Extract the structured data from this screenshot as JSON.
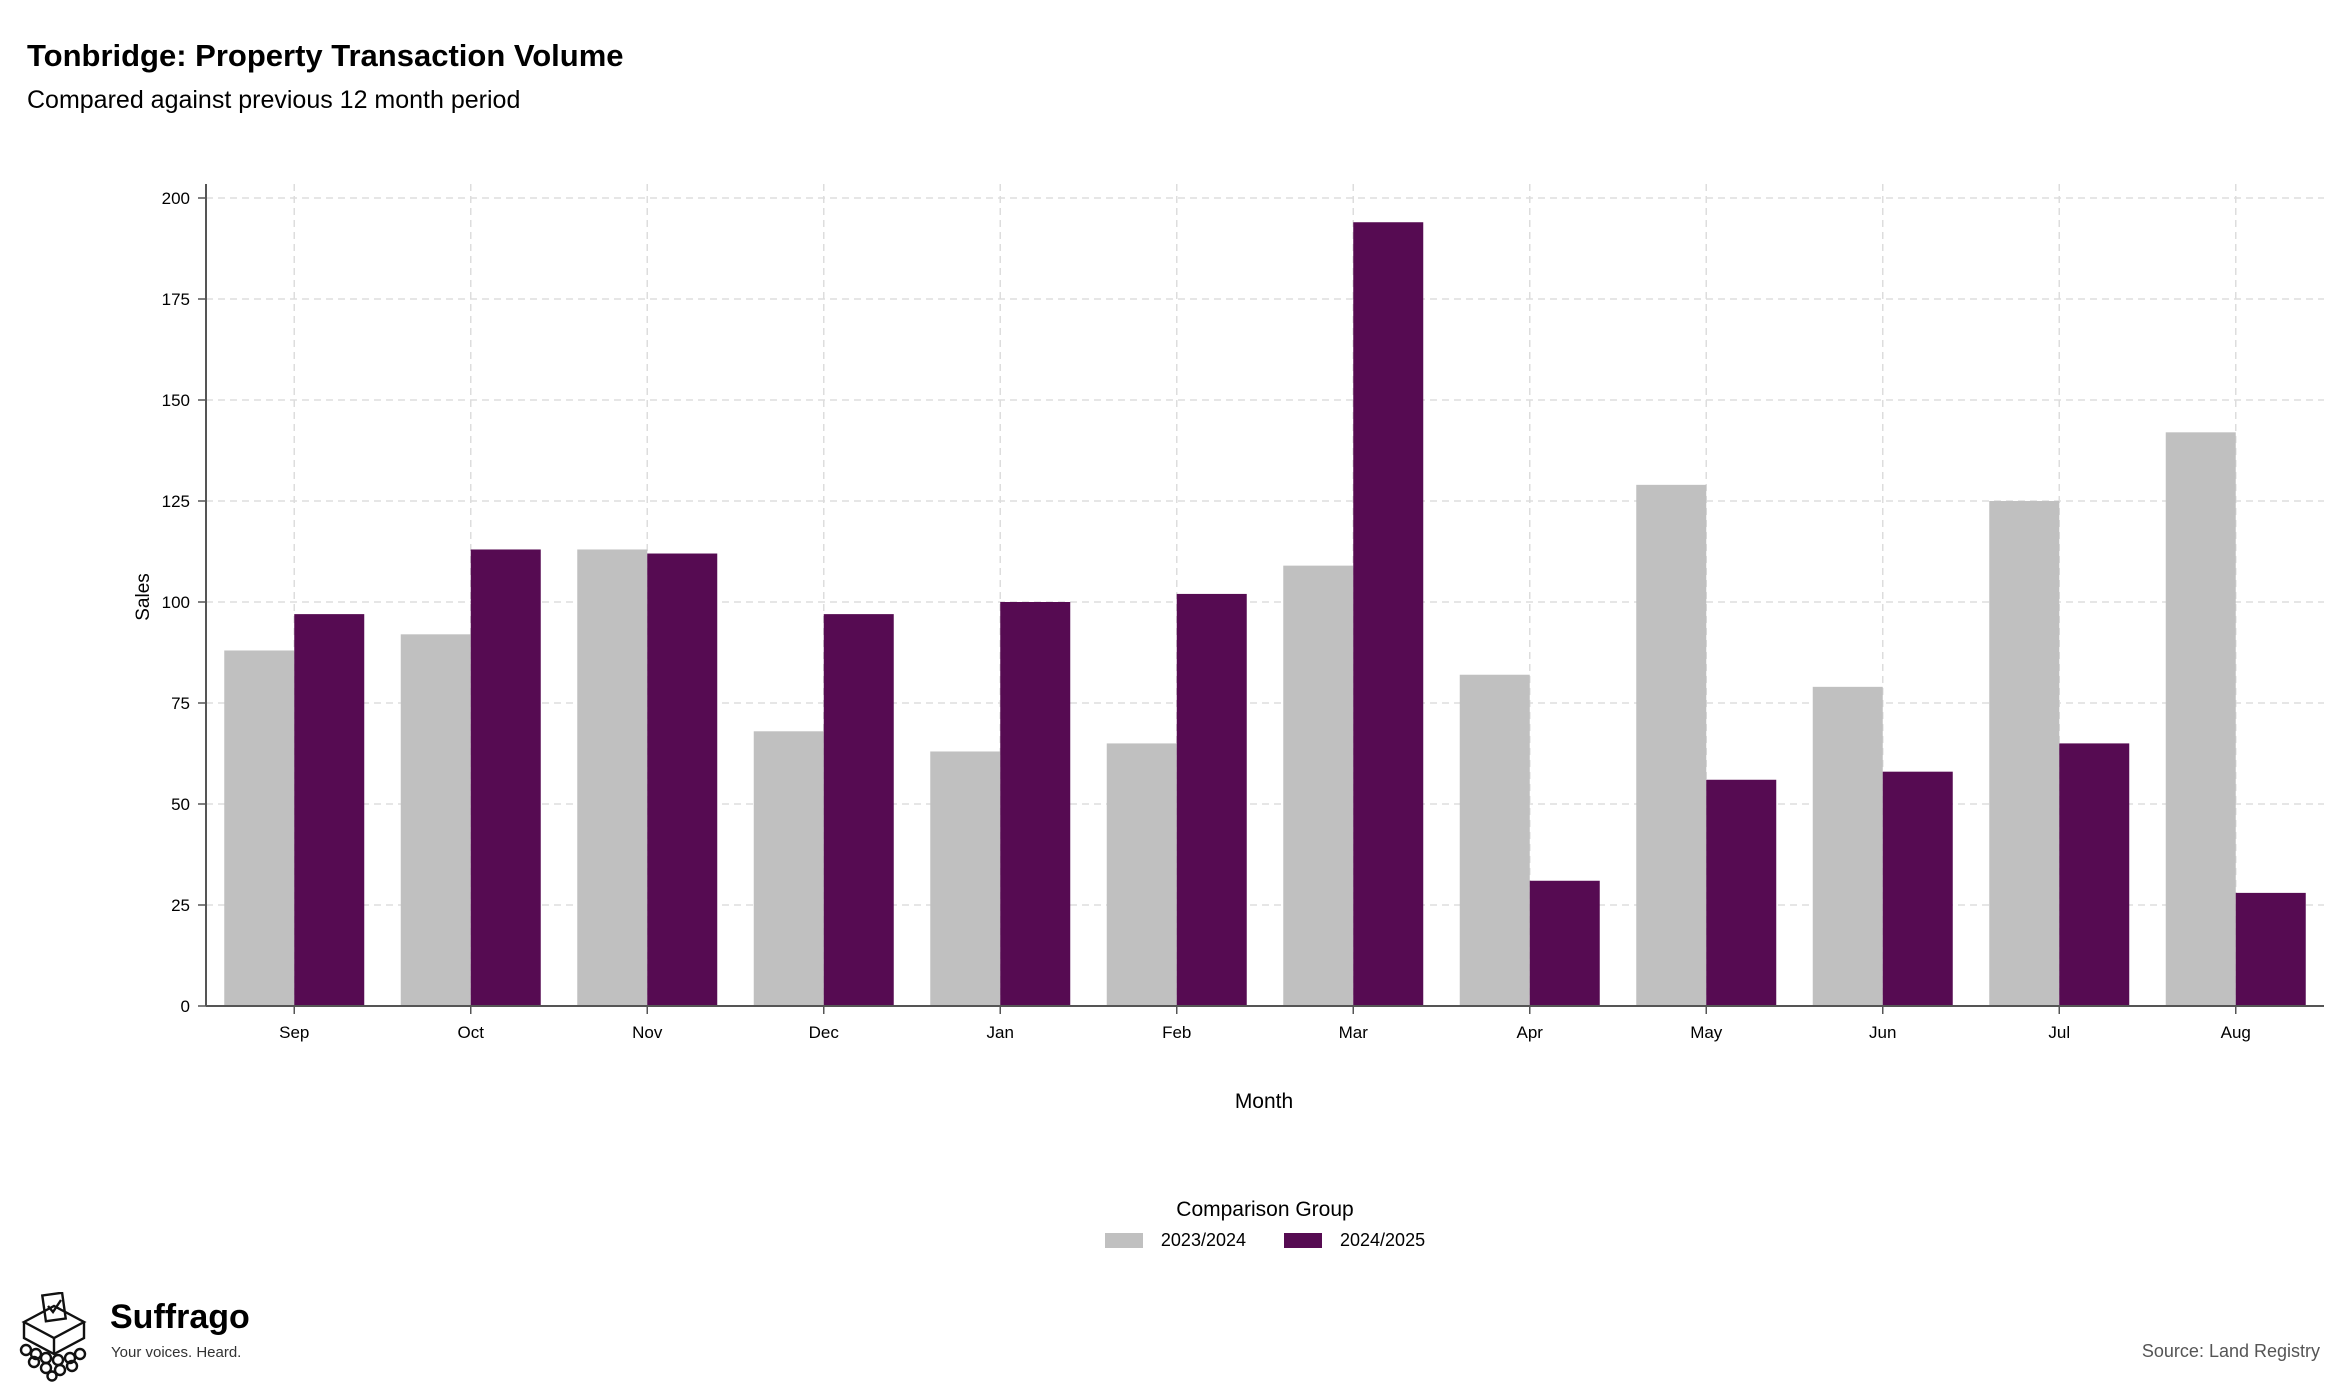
{
  "title": "Tonbridge: Property Transaction Volume",
  "subtitle": "Compared against previous 12 month period",
  "source": "Source: Land Registry",
  "brand": {
    "name": "Suffrago",
    "tagline": "Your voices. Heard."
  },
  "colors": {
    "series_2023_2024": "#c0c0c0",
    "series_2024_2025": "#560b52",
    "grid": "#dddddd",
    "axis": "#555555"
  },
  "chart_data": {
    "type": "bar",
    "xlabel": "Month",
    "ylabel": "Sales",
    "ylim": [
      0,
      200
    ],
    "yticks": [
      0,
      25,
      50,
      75,
      100,
      125,
      150,
      175,
      200
    ],
    "grid": true,
    "legend_title": "Comparison Group",
    "legend_position": "bottom",
    "categories": [
      "Sep",
      "Oct",
      "Nov",
      "Dec",
      "Jan",
      "Feb",
      "Mar",
      "Apr",
      "May",
      "Jun",
      "Jul",
      "Aug"
    ],
    "series": [
      {
        "name": "2023/2024",
        "values": [
          88,
          92,
          113,
          68,
          63,
          65,
          109,
          82,
          129,
          79,
          125,
          142
        ]
      },
      {
        "name": "2024/2025",
        "values": [
          97,
          113,
          112,
          97,
          100,
          102,
          194,
          31,
          56,
          58,
          65,
          28
        ]
      }
    ]
  }
}
